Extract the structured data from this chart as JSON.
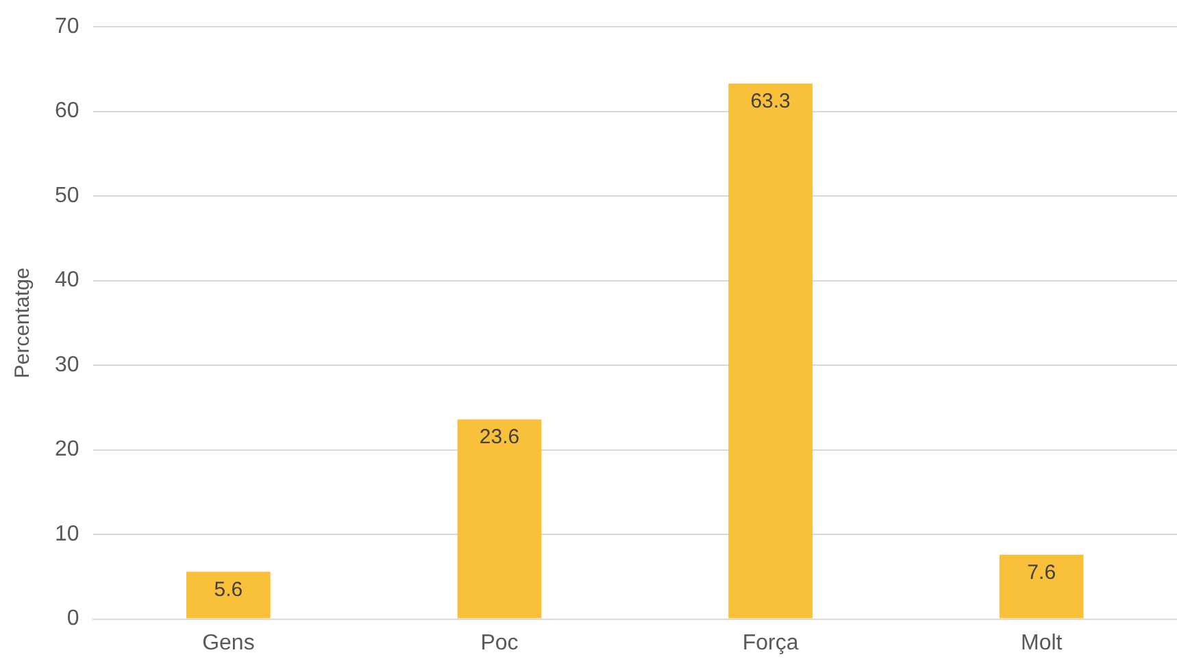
{
  "chart_data": {
    "type": "bar",
    "ylabel": "Percentatge",
    "categories": [
      "Gens",
      "Poc",
      "Força",
      "Molt"
    ],
    "values": [
      5.6,
      23.6,
      63.3,
      7.6
    ],
    "color": "#f9c03a",
    "ylim": [
      0,
      70
    ],
    "yticks": [
      0,
      10,
      20,
      30,
      40,
      50,
      60,
      70
    ],
    "grid": "y",
    "data_labels": true,
    "legend": false
  }
}
